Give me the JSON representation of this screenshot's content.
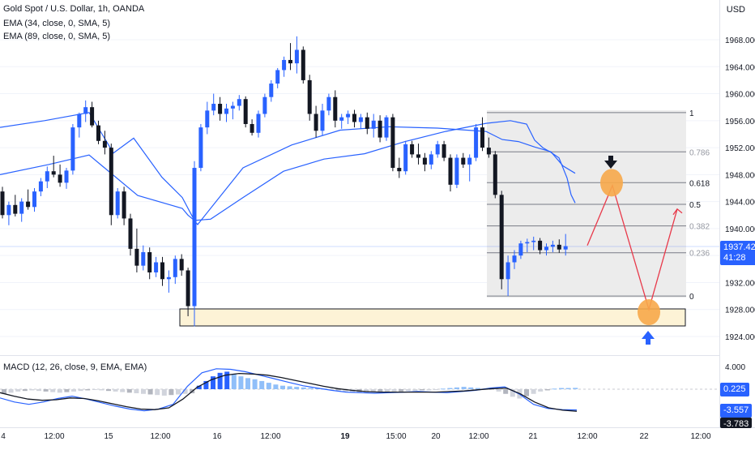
{
  "header": {
    "symbol_line": "Gold Spot / U.S. Dollar, 1h, OANDA",
    "ema1": "EMA (34, close, 0, SMA, 5)",
    "ema2": "EMA (89, close, 0, SMA, 5)",
    "currency": "USD"
  },
  "macd_header": "MACD (12, 26, close, 9, EMA, EMA)",
  "colors": {
    "up": "#2962ff",
    "down": "#131722",
    "ema": "#2962ff",
    "signal": "#131722",
    "price_tag": "#2962ff",
    "zone_fill": "#fdf3d6",
    "zone_stroke": "#131722",
    "target_circle": "#f7a84a",
    "projection": "#e8394a",
    "fib_fill": "#ececec"
  },
  "price_axis": {
    "ticks": [
      "1968.000",
      "1964.000",
      "1960.000",
      "1956.000",
      "1952.000",
      "1948.000",
      "1944.000",
      "1940.000",
      "1936.000",
      "1932.000",
      "1928.000",
      "1924.000"
    ],
    "last_price": "1937.425",
    "countdown": "41:28"
  },
  "macd_axis": {
    "top_tick": "4.000",
    "hist_tag": "0.225",
    "macd_tag": "-3.557",
    "signal_tag": "-3.783"
  },
  "time_axis": [
    "4",
    "12:00",
    "15",
    "12:00",
    "16",
    "12:00",
    "19",
    "15:00",
    "20",
    "12:00",
    "21",
    "12:00",
    "22",
    "12:00"
  ],
  "fib_levels": [
    "1",
    "0.786",
    "0.618",
    "0.5",
    "0.382",
    "0.236",
    "0"
  ],
  "chart_data": {
    "type": "candlestick",
    "title": "Gold Spot / U.S. Dollar, 1h, OANDA",
    "ylim": [
      1922,
      1971
    ],
    "candles": [
      [
        1945.5,
        1946.2,
        1941.5,
        1942.0
      ],
      [
        1942.0,
        1944.0,
        1940.5,
        1943.5
      ],
      [
        1943.5,
        1945.0,
        1941.8,
        1942.2
      ],
      [
        1942.2,
        1944.5,
        1941.0,
        1944.0
      ],
      [
        1944.0,
        1945.8,
        1942.8,
        1943.2
      ],
      [
        1943.2,
        1946.0,
        1942.5,
        1945.5
      ],
      [
        1945.5,
        1947.5,
        1944.8,
        1947.0
      ],
      [
        1947.0,
        1949.2,
        1946.0,
        1948.5
      ],
      [
        1948.5,
        1950.8,
        1947.6,
        1948.0
      ],
      [
        1948.0,
        1949.5,
        1946.2,
        1946.8
      ],
      [
        1946.8,
        1949.0,
        1945.9,
        1948.6
      ],
      [
        1948.6,
        1955.5,
        1948.0,
        1955.0
      ],
      [
        1955.0,
        1957.2,
        1953.5,
        1957.0
      ],
      [
        1957.0,
        1959.0,
        1955.8,
        1958.0
      ],
      [
        1958.0,
        1958.8,
        1955.0,
        1955.3
      ],
      [
        1955.3,
        1956.0,
        1952.5,
        1953.0
      ],
      [
        1953.0,
        1954.5,
        1951.0,
        1952.0
      ],
      [
        1952.0,
        1952.6,
        1940.5,
        1942.0
      ],
      [
        1942.0,
        1946.0,
        1941.5,
        1945.5
      ],
      [
        1945.5,
        1946.2,
        1940.5,
        1941.5
      ],
      [
        1941.5,
        1942.2,
        1936.0,
        1937.0
      ],
      [
        1937.0,
        1940.0,
        1933.5,
        1934.5
      ],
      [
        1934.5,
        1937.5,
        1933.8,
        1936.5
      ],
      [
        1936.5,
        1937.2,
        1932.5,
        1933.5
      ],
      [
        1933.5,
        1935.8,
        1932.8,
        1935.0
      ],
      [
        1935.0,
        1935.8,
        1931.5,
        1932.5
      ],
      [
        1932.5,
        1933.8,
        1930.5,
        1932.8
      ],
      [
        1932.8,
        1936.0,
        1931.8,
        1935.5
      ],
      [
        1935.5,
        1936.2,
        1933.0,
        1933.8
      ],
      [
        1933.8,
        1934.2,
        1927.0,
        1928.5
      ],
      [
        1928.5,
        1950.0,
        1925.5,
        1949.0
      ],
      [
        1949.0,
        1955.5,
        1948.5,
        1955.0
      ],
      [
        1955.0,
        1958.8,
        1954.0,
        1957.5
      ],
      [
        1957.5,
        1960.0,
        1956.8,
        1958.5
      ],
      [
        1958.5,
        1959.5,
        1956.0,
        1957.0
      ],
      [
        1957.0,
        1958.5,
        1955.8,
        1957.8
      ],
      [
        1957.8,
        1958.8,
        1956.2,
        1958.2
      ],
      [
        1958.2,
        1959.8,
        1957.5,
        1959.2
      ],
      [
        1959.2,
        1959.6,
        1955.0,
        1955.5
      ],
      [
        1955.5,
        1956.2,
        1953.8,
        1954.2
      ],
      [
        1954.2,
        1957.5,
        1953.5,
        1957.0
      ],
      [
        1957.0,
        1960.0,
        1956.5,
        1959.5
      ],
      [
        1959.5,
        1962.0,
        1958.8,
        1961.5
      ],
      [
        1961.5,
        1963.8,
        1960.8,
        1963.5
      ],
      [
        1963.5,
        1965.5,
        1962.5,
        1965.0
      ],
      [
        1965.0,
        1967.5,
        1963.5,
        1964.5
      ],
      [
        1964.5,
        1968.5,
        1963.0,
        1966.5
      ],
      [
        1966.5,
        1967.0,
        1961.5,
        1962.0
      ],
      [
        1962.0,
        1962.8,
        1956.0,
        1957.0
      ],
      [
        1957.0,
        1958.2,
        1953.5,
        1954.5
      ],
      [
        1954.5,
        1958.5,
        1953.8,
        1957.5
      ],
      [
        1957.5,
        1960.0,
        1956.8,
        1959.5
      ],
      [
        1959.5,
        1960.5,
        1955.0,
        1956.0
      ],
      [
        1956.0,
        1957.0,
        1954.8,
        1956.5
      ],
      [
        1956.5,
        1957.5,
        1955.5,
        1957.0
      ],
      [
        1957.0,
        1957.6,
        1955.0,
        1955.8
      ],
      [
        1955.8,
        1957.0,
        1954.8,
        1956.5
      ],
      [
        1956.5,
        1957.2,
        1954.0,
        1954.8
      ],
      [
        1954.8,
        1957.0,
        1953.5,
        1956.0
      ],
      [
        1956.0,
        1956.8,
        1952.8,
        1953.5
      ],
      [
        1953.5,
        1956.8,
        1953.0,
        1956.5
      ],
      [
        1956.5,
        1957.0,
        1948.5,
        1949.0
      ],
      [
        1949.0,
        1950.5,
        1947.5,
        1948.5
      ],
      [
        1948.5,
        1953.0,
        1948.0,
        1952.5
      ],
      [
        1952.5,
        1953.0,
        1950.5,
        1951.0
      ],
      [
        1951.0,
        1952.6,
        1949.5,
        1950.5
      ],
      [
        1950.5,
        1951.2,
        1948.5,
        1949.5
      ],
      [
        1949.5,
        1951.5,
        1948.8,
        1951.0
      ],
      [
        1951.0,
        1953.0,
        1950.5,
        1952.5
      ],
      [
        1952.5,
        1953.0,
        1950.0,
        1950.5
      ],
      [
        1950.5,
        1951.0,
        1945.5,
        1946.5
      ],
      [
        1946.5,
        1951.0,
        1946.0,
        1950.5
      ],
      [
        1950.5,
        1951.2,
        1949.0,
        1949.5
      ],
      [
        1949.5,
        1951.0,
        1947.0,
        1950.5
      ],
      [
        1950.5,
        1955.5,
        1950.0,
        1955.0
      ],
      [
        1955.0,
        1956.5,
        1951.5,
        1952.0
      ],
      [
        1952.0,
        1953.5,
        1950.5,
        1951.0
      ],
      [
        1951.0,
        1951.5,
        1944.5,
        1945.0
      ],
      [
        1945.0,
        1945.6,
        1931.0,
        1932.5
      ],
      [
        1932.5,
        1936.0,
        1930.0,
        1935.0
      ],
      [
        1935.0,
        1936.8,
        1934.0,
        1936.0
      ],
      [
        1936.0,
        1938.2,
        1935.5,
        1937.8
      ],
      [
        1937.8,
        1938.5,
        1936.5,
        1938.0
      ],
      [
        1938.0,
        1938.8,
        1936.8,
        1938.2
      ],
      [
        1938.2,
        1938.6,
        1936.2,
        1936.8
      ],
      [
        1936.8,
        1937.8,
        1936.0,
        1937.3
      ],
      [
        1937.3,
        1938.2,
        1936.5,
        1937.6
      ],
      [
        1937.6,
        1938.4,
        1936.4,
        1936.9
      ],
      [
        1936.9,
        1939.2,
        1936.0,
        1937.4
      ]
    ],
    "ema34": [
      [
        1955.0,
        1956.0,
        1957.2
      ],
      [
        1949.0,
        1951.2,
        1953.4
      ],
      [
        1944.5,
        1947.6
      ],
      [
        1945.7,
        1944.6,
        1941.2
      ],
      [
        1939.5,
        1941.4,
        1944.6,
        1948.5,
        1950.3,
        1951.1
      ],
      [
        1951.6,
        1952.9,
        1954.4,
        1955.6,
        1956.0
      ],
      [
        1956.2,
        1955.5,
        1953.1,
        1952.0,
        1951.3
      ],
      [
        1950.7,
        1950.5,
        1947.5,
        1945.0,
        1943.8
      ]
    ],
    "ema89": [
      [
        1948.0,
        1949.5,
        1950.9
      ],
      [
        1947.6,
        1944.9,
        1943.0
      ],
      [
        1942.4,
        1942.0,
        1941.4,
        1940.6
      ],
      [
        1944.2,
        1949.0,
        1952.4,
        1954.6
      ],
      [
        1955.3,
        1955.1,
        1954.9,
        1954.4
      ],
      [
        1953.9,
        1953.2,
        1952.9,
        1952.1,
        1951.4,
        1949.3,
        1948.2
      ]
    ],
    "fibonacci": {
      "high": 1957.2,
      "low": 1930.0,
      "levels": [
        1,
        0.786,
        0.618,
        0.5,
        0.382,
        0.236,
        0
      ]
    },
    "support_zone": {
      "top": 1928.6,
      "bottom": 1926.4
    },
    "projection_path": [
      1937.5,
      1946.4,
      1928.0,
      1942.9
    ],
    "macd": {
      "ylim": [
        -5,
        5
      ],
      "histogram": [
        -0.8,
        -0.6,
        -0.4,
        -0.3,
        -0.2,
        -0.3,
        -0.4,
        -0.5,
        -0.6,
        -0.5,
        -0.4,
        -0.3,
        -0.2,
        -0.1,
        -0.2,
        -0.3,
        -0.4,
        -0.5,
        -0.6,
        -0.7,
        -0.8,
        -0.9,
        -1.0,
        -1.1,
        -1.0,
        -0.9,
        -0.8,
        -0.7,
        0.6,
        1.4,
        2.2,
        2.8,
        3.0,
        2.6,
        2.2,
        1.9,
        1.7,
        1.4,
        1.1,
        0.8,
        0.6,
        0.5,
        0.4,
        0.3,
        0.2,
        0.2,
        0.1,
        -0.1,
        -0.2,
        -0.4,
        -0.5,
        -0.6,
        -0.6,
        -0.5,
        -0.5,
        -0.5,
        -0.4,
        -0.4,
        -0.3,
        -0.3,
        -0.2,
        -0.2,
        -0.1,
        0.1,
        0.2,
        0.3,
        0.4,
        0.3,
        0.2,
        0.1,
        -0.1,
        -0.4,
        -0.8,
        -1.3,
        -1.6,
        -1.2,
        -0.8,
        -0.4,
        -0.2,
        0.1,
        0.2,
        0.2,
        0.225
      ],
      "macd_line": [
        -1.5,
        -2.2,
        -2.6,
        -2.2,
        -1.6,
        -1.2,
        -1.7,
        -2.3,
        -2.9,
        -3.4,
        -3.7,
        -3.4,
        -2.6,
        0.5,
        2.8,
        3.5,
        3.4,
        3.0,
        2.4,
        1.8,
        1.2,
        0.6,
        0.2,
        -0.2,
        -0.5,
        -0.6,
        -0.7,
        -0.6,
        -0.5,
        -0.4,
        -0.5,
        -0.6,
        -0.4,
        -0.2,
        0.2,
        0.4,
        -0.8,
        -2.6,
        -3.3,
        -3.5,
        -3.557
      ],
      "signal_line": [
        -0.6,
        -1.2,
        -1.7,
        -1.9,
        -1.8,
        -1.5,
        -1.6,
        -2.0,
        -2.5,
        -3.0,
        -3.4,
        -3.5,
        -3.2,
        -1.7,
        0.3,
        1.6,
        2.4,
        2.7,
        2.6,
        2.4,
        2.0,
        1.5,
        1.0,
        0.5,
        0.1,
        -0.2,
        -0.4,
        -0.5,
        -0.5,
        -0.5,
        -0.5,
        -0.5,
        -0.4,
        -0.3,
        -0.1,
        0.1,
        0.2,
        -0.8,
        -2.2,
        -3.2,
        -3.6,
        -3.783
      ]
    }
  }
}
